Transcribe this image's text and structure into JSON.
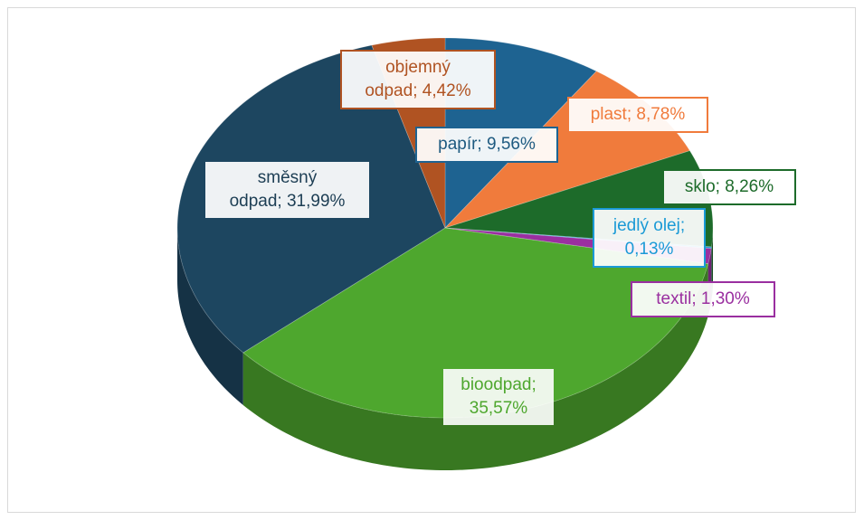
{
  "chart_data": {
    "type": "pie3d",
    "values": [
      9.56,
      8.78,
      8.26,
      0.13,
      1.3,
      35.57,
      31.99,
      4.42
    ],
    "value_labels": [
      "papír; 9,56%",
      "plast; 8,78%",
      "sklo; 8,26%",
      "jedlý olej; 0,13%",
      "textil; 1,30%",
      "bioodpad; 35,57%",
      "směsný odpad; 31,99%",
      "objemný odpad; 4,42%"
    ],
    "colors": [
      "#1e6391",
      "#f07b3c",
      "#1d6b2a",
      "#1a9ad6",
      "#9a2fa0",
      "#4ea72e",
      "#1d4660",
      "#b05322"
    ]
  }
}
